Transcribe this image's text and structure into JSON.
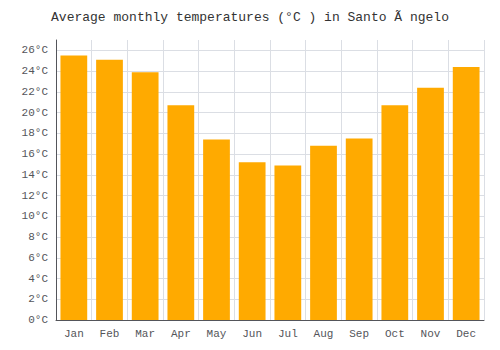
{
  "chart_data": {
    "type": "bar",
    "title": "Average monthly temperatures (°C ) in Santo Ã ngelo",
    "categories": [
      "Jan",
      "Feb",
      "Mar",
      "Apr",
      "May",
      "Jun",
      "Jul",
      "Aug",
      "Sep",
      "Oct",
      "Nov",
      "Dec"
    ],
    "values": [
      25.5,
      25.1,
      23.9,
      20.7,
      17.4,
      15.2,
      14.9,
      16.8,
      17.5,
      20.7,
      22.4,
      24.4
    ],
    "color": "#FFAA00",
    "ylim": [
      0,
      27
    ],
    "yticks": [
      {
        "value": 0,
        "label": "0°C"
      },
      {
        "value": 2,
        "label": "2°C"
      },
      {
        "value": 4,
        "label": "4°C"
      },
      {
        "value": 6,
        "label": "6°C"
      },
      {
        "value": 8,
        "label": "8°C"
      },
      {
        "value": 10,
        "label": "10°C"
      },
      {
        "value": 12,
        "label": "12°C"
      },
      {
        "value": 14,
        "label": "14°C"
      },
      {
        "value": 16,
        "label": "16°C"
      },
      {
        "value": 18,
        "label": "18°C"
      },
      {
        "value": 20,
        "label": "20°C"
      },
      {
        "value": 22,
        "label": "22°C"
      },
      {
        "value": 24,
        "label": "24°C"
      },
      {
        "value": 26,
        "label": "26°C"
      }
    ],
    "grid": true
  }
}
